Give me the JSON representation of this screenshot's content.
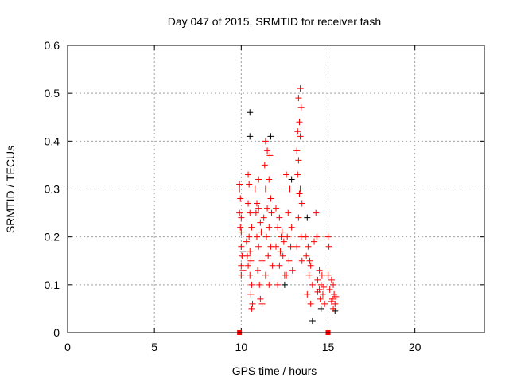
{
  "chart_data": {
    "type": "scatter",
    "title": "Day 047 of 2015, SRMTID for receiver tash",
    "xlabel": "GPS time / hours",
    "ylabel": "SRMTID / TECUs",
    "xlim": [
      0,
      24
    ],
    "ylim": [
      0,
      0.6
    ],
    "xticks": [
      "0",
      "5",
      "10",
      "15",
      "20"
    ],
    "yticks": [
      "0",
      "0.1",
      "0.2",
      "0.3",
      "0.4",
      "0.5",
      "0.6"
    ],
    "grid": true,
    "colors": {
      "primary": "#ff0000",
      "secondary": "#000000",
      "grid": "#a0a0a0"
    },
    "series": [
      {
        "name": "secondary",
        "marker": "plus",
        "color": "#000000",
        "points": [
          [
            10.5,
            0.46
          ],
          [
            10.5,
            0.41
          ],
          [
            11.7,
            0.41
          ],
          [
            14.1,
            0.025
          ],
          [
            15.4,
            0.045
          ],
          [
            12.5,
            0.1
          ],
          [
            13.8,
            0.24
          ],
          [
            10.1,
            0.17
          ],
          [
            12.9,
            0.32
          ],
          [
            14.6,
            0.05
          ]
        ]
      },
      {
        "name": "primary",
        "marker": "plus",
        "color": "#ff0000",
        "points": [
          [
            9.9,
            0.31
          ],
          [
            9.9,
            0.3
          ],
          [
            9.95,
            0.28
          ],
          [
            9.9,
            0.25
          ],
          [
            10.0,
            0.24
          ],
          [
            9.95,
            0.22
          ],
          [
            10.0,
            0.21
          ],
          [
            10.0,
            0.18
          ],
          [
            10.05,
            0.16
          ],
          [
            10.0,
            0.14
          ],
          [
            10.1,
            0.13
          ],
          [
            10.0,
            0.12
          ],
          [
            10.4,
            0.33
          ],
          [
            10.45,
            0.31
          ],
          [
            10.4,
            0.27
          ],
          [
            10.5,
            0.25
          ],
          [
            10.45,
            0.2
          ],
          [
            10.5,
            0.17
          ],
          [
            10.35,
            0.16
          ],
          [
            10.55,
            0.15
          ],
          [
            10.4,
            0.14
          ],
          [
            10.5,
            0.12
          ],
          [
            10.6,
            0.1
          ],
          [
            10.55,
            0.08
          ],
          [
            10.65,
            0.06
          ],
          [
            10.6,
            0.05
          ],
          [
            10.3,
            0.19
          ],
          [
            10.6,
            0.22
          ],
          [
            10.8,
            0.3
          ],
          [
            10.9,
            0.27
          ],
          [
            11.0,
            0.26
          ],
          [
            10.85,
            0.25
          ],
          [
            11.1,
            0.23
          ],
          [
            10.9,
            0.2
          ],
          [
            11.0,
            0.18
          ],
          [
            11.2,
            0.15
          ],
          [
            10.95,
            0.13
          ],
          [
            11.05,
            0.1
          ],
          [
            11.1,
            0.07
          ],
          [
            11.2,
            0.06
          ],
          [
            11.0,
            0.32
          ],
          [
            11.15,
            0.21
          ],
          [
            11.4,
            0.4
          ],
          [
            11.5,
            0.38
          ],
          [
            11.35,
            0.35
          ],
          [
            11.6,
            0.32
          ],
          [
            11.4,
            0.3
          ],
          [
            11.7,
            0.28
          ],
          [
            11.5,
            0.26
          ],
          [
            11.3,
            0.24
          ],
          [
            11.6,
            0.22
          ],
          [
            11.45,
            0.2
          ],
          [
            11.7,
            0.18
          ],
          [
            11.55,
            0.16
          ],
          [
            11.8,
            0.14
          ],
          [
            11.4,
            0.12
          ],
          [
            11.6,
            0.1
          ],
          [
            11.75,
            0.25
          ],
          [
            11.65,
            0.37
          ],
          [
            12.0,
            0.26
          ],
          [
            12.2,
            0.24
          ],
          [
            12.1,
            0.22
          ],
          [
            12.3,
            0.2
          ],
          [
            12.0,
            0.18
          ],
          [
            12.4,
            0.16
          ],
          [
            12.2,
            0.14
          ],
          [
            12.5,
            0.12
          ],
          [
            12.1,
            0.1
          ],
          [
            12.35,
            0.21
          ],
          [
            12.45,
            0.19
          ],
          [
            12.25,
            0.17
          ],
          [
            12.6,
            0.33
          ],
          [
            12.8,
            0.3
          ],
          [
            12.7,
            0.25
          ],
          [
            12.9,
            0.22
          ],
          [
            12.65,
            0.2
          ],
          [
            12.85,
            0.18
          ],
          [
            12.75,
            0.15
          ],
          [
            12.95,
            0.13
          ],
          [
            12.6,
            0.12
          ],
          [
            13.4,
            0.51
          ],
          [
            13.3,
            0.49
          ],
          [
            13.45,
            0.47
          ],
          [
            13.35,
            0.44
          ],
          [
            13.25,
            0.42
          ],
          [
            13.4,
            0.41
          ],
          [
            13.2,
            0.38
          ],
          [
            13.3,
            0.36
          ],
          [
            13.25,
            0.33
          ],
          [
            13.4,
            0.3
          ],
          [
            13.5,
            0.27
          ],
          [
            13.3,
            0.24
          ],
          [
            13.45,
            0.2
          ],
          [
            13.2,
            0.18
          ],
          [
            13.5,
            0.15
          ],
          [
            13.35,
            0.29
          ],
          [
            13.7,
            0.2
          ],
          [
            13.85,
            0.18
          ],
          [
            13.75,
            0.16
          ],
          [
            14.0,
            0.14
          ],
          [
            13.9,
            0.12
          ],
          [
            14.1,
            0.1
          ],
          [
            13.8,
            0.08
          ],
          [
            14.0,
            0.06
          ],
          [
            14.2,
            0.19
          ],
          [
            13.95,
            0.15
          ],
          [
            14.3,
            0.25
          ],
          [
            14.35,
            0.2
          ],
          [
            14.5,
            0.13
          ],
          [
            14.4,
            0.11
          ],
          [
            14.6,
            0.1
          ],
          [
            14.5,
            0.09
          ],
          [
            14.7,
            0.08
          ],
          [
            14.55,
            0.07
          ],
          [
            14.8,
            0.06
          ],
          [
            14.65,
            0.12
          ],
          [
            14.4,
            0.085
          ],
          [
            14.75,
            0.095
          ],
          [
            15.0,
            0.2
          ],
          [
            15.05,
            0.18
          ],
          [
            15.0,
            0.12
          ],
          [
            15.2,
            0.11
          ],
          [
            15.3,
            0.1
          ],
          [
            15.1,
            0.09
          ],
          [
            15.35,
            0.08
          ],
          [
            15.25,
            0.07
          ],
          [
            15.4,
            0.06
          ],
          [
            15.3,
            0.05
          ],
          [
            15.45,
            0.075
          ],
          [
            15.2,
            0.065
          ]
        ]
      }
    ],
    "markers": [
      {
        "name": "square",
        "color": "#ff0000",
        "points": [
          [
            9.9,
            0
          ],
          [
            15.0,
            0
          ]
        ]
      }
    ]
  }
}
